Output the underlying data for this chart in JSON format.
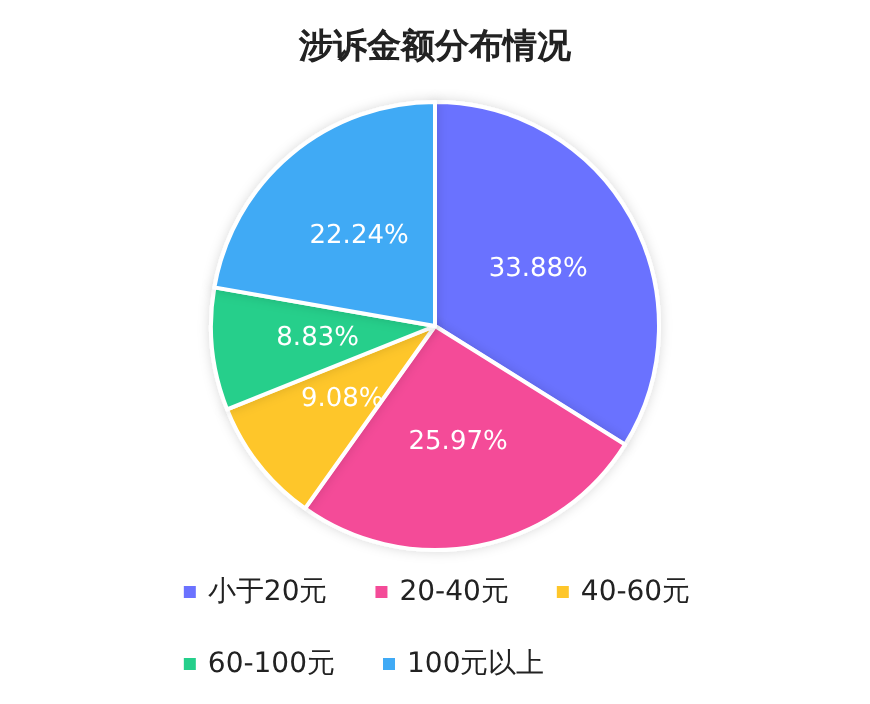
{
  "chart_data": {
    "type": "pie",
    "title": "涉诉金额分布情况",
    "categories": [
      "小于20元",
      "20-40元",
      "40-60元",
      "60-100元",
      "100元以上"
    ],
    "values": [
      33.88,
      25.97,
      9.08,
      8.83,
      22.24
    ],
    "colors": [
      "#6b72ff",
      "#f44b98",
      "#fec62a",
      "#25cf8b",
      "#40aaf5"
    ],
    "value_labels": [
      "33.88%",
      "25.97%",
      "9.08%",
      "8.83%",
      "22.24%"
    ],
    "legend": "bottom"
  }
}
